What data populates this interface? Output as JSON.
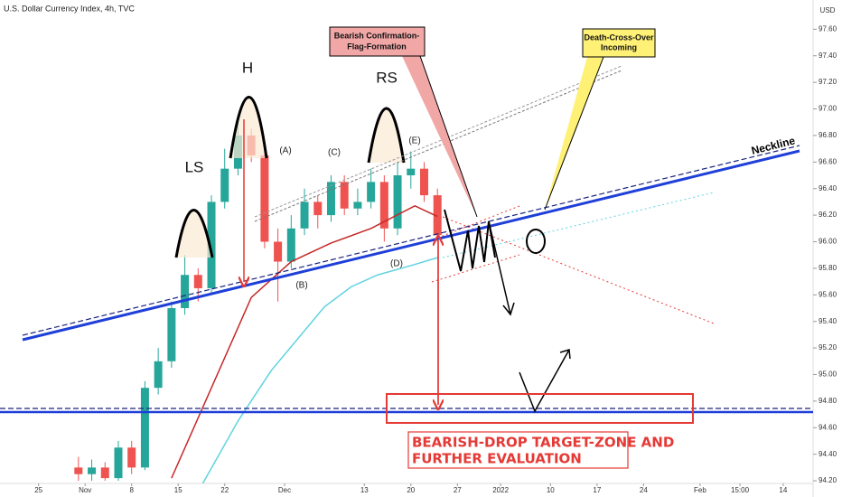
{
  "chart_data": {
    "type": "candlestick",
    "title": "U.S. Dollar Currency Index, 4h, TVC",
    "currency": "USD",
    "ylim": [
      94.18,
      97.82
    ],
    "yticks": [
      {
        "value": 94.2,
        "label": "94.20"
      },
      {
        "value": 94.4,
        "label": "94.40"
      },
      {
        "value": 94.6,
        "label": "94.60"
      },
      {
        "value": 94.8,
        "label": "94.80"
      },
      {
        "value": 95.0,
        "label": "95.00"
      },
      {
        "value": 95.2,
        "label": "95.20"
      },
      {
        "value": 95.4,
        "label": "95.40"
      },
      {
        "value": 95.6,
        "label": "95.60"
      },
      {
        "value": 95.8,
        "label": "95.80"
      },
      {
        "value": 96.0,
        "label": "96.00"
      },
      {
        "value": 96.2,
        "label": "96.20"
      },
      {
        "value": 96.4,
        "label": "96.40"
      },
      {
        "value": 96.6,
        "label": "96.60"
      },
      {
        "value": 96.8,
        "label": "96.80"
      },
      {
        "value": 97.0,
        "label": "97.00"
      },
      {
        "value": 97.2,
        "label": "97.20"
      },
      {
        "value": 97.4,
        "label": "97.40"
      },
      {
        "value": 97.6,
        "label": "97.60"
      }
    ],
    "xlim": [
      -5.8,
      116.5
    ],
    "xticks": [
      {
        "value": 0,
        "label": "25"
      },
      {
        "value": 7,
        "label": "Nov"
      },
      {
        "value": 14,
        "label": "8"
      },
      {
        "value": 21,
        "label": "15"
      },
      {
        "value": 28,
        "label": "22"
      },
      {
        "value": 37,
        "label": "Dec"
      },
      {
        "value": 49,
        "label": "13"
      },
      {
        "value": 56,
        "label": "20"
      },
      {
        "value": 63,
        "label": "27"
      },
      {
        "value": 69.5,
        "label": "2022"
      },
      {
        "value": 77,
        "label": "10"
      },
      {
        "value": 84,
        "label": "17"
      },
      {
        "value": 91,
        "label": "24"
      },
      {
        "value": 99.5,
        "label": "Feb"
      },
      {
        "value": 105.5,
        "label": "15:00"
      },
      {
        "value": 112,
        "label": "14"
      }
    ],
    "up_color": "#26a69a",
    "down_color": "#ef5350",
    "candles": {
      "x": [
        6,
        8,
        10,
        12,
        14,
        16,
        18,
        20,
        22,
        24,
        26,
        28,
        30,
        32,
        34,
        36,
        38,
        40,
        42,
        44,
        46,
        48,
        50,
        52,
        54,
        56,
        58,
        60
      ],
      "open": [
        94.3,
        94.25,
        94.3,
        94.22,
        94.45,
        94.3,
        94.9,
        95.1,
        95.5,
        95.75,
        95.65,
        96.3,
        96.55,
        96.8,
        96.65,
        96.0,
        95.85,
        96.1,
        96.3,
        96.2,
        96.45,
        96.25,
        96.3,
        96.45,
        96.1,
        96.5,
        96.55,
        96.35
      ],
      "high": [
        94.38,
        94.36,
        94.34,
        94.5,
        94.5,
        94.95,
        95.2,
        95.55,
        95.9,
        95.8,
        96.35,
        96.7,
        96.93,
        96.85,
        96.7,
        96.1,
        96.2,
        96.4,
        96.35,
        96.5,
        96.5,
        96.4,
        96.55,
        96.5,
        96.6,
        96.68,
        96.6,
        96.4
      ],
      "low": [
        94.2,
        94.2,
        94.2,
        94.2,
        94.25,
        94.28,
        94.85,
        95.05,
        95.45,
        95.55,
        95.6,
        96.25,
        96.5,
        96.6,
        95.95,
        95.55,
        95.8,
        96.05,
        96.1,
        96.15,
        96.2,
        96.2,
        96.25,
        96.0,
        96.05,
        96.4,
        96.3,
        96.0
      ],
      "close": [
        94.25,
        94.3,
        94.22,
        94.45,
        94.3,
        94.9,
        95.1,
        95.5,
        95.75,
        95.65,
        96.3,
        96.55,
        96.8,
        96.65,
        96.0,
        95.85,
        96.1,
        96.3,
        96.2,
        96.45,
        96.25,
        96.3,
        96.45,
        96.1,
        96.5,
        96.55,
        96.35,
        96.05
      ]
    },
    "series": [
      {
        "color": "#c62828",
        "x": [
          20,
          26,
          32,
          38,
          44,
          50,
          56.6,
          60
        ],
        "values": [
          94.22,
          94.9,
          95.58,
          95.85,
          95.99,
          96.1,
          96.27,
          96.19
        ]
      },
      {
        "color": "#5fd3e0",
        "x": [
          24.7,
          30,
          35,
          40,
          43,
          47,
          51,
          56,
          60
        ],
        "values": [
          94.18,
          94.65,
          95.03,
          95.33,
          95.51,
          95.66,
          95.75,
          95.82,
          95.88
        ]
      }
    ],
    "annotations": {
      "ls": "LS",
      "h": "H",
      "rs": "RS",
      "a": "(A)",
      "b": "(B)",
      "c": "(C)",
      "d": "(D)",
      "e": "(E)",
      "neckline": "Neckline",
      "flag": [
        "Bearish Confirmation-",
        "Flag-Formation"
      ],
      "death_cross": [
        "Death-Cross-Over",
        "Incoming"
      ],
      "target": [
        "BEARISH-DROP TARGET-ZONE AND",
        "FURTHER EVALUATION"
      ]
    }
  }
}
